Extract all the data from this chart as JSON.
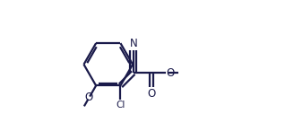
{
  "bg_color": "#ffffff",
  "line_color": "#1a1a4a",
  "line_width": 1.6,
  "figsize": [
    3.18,
    1.56
  ],
  "dpi": 100,
  "xlim": [
    0.0,
    1.0
  ],
  "ylim": [
    0.0,
    1.0
  ]
}
